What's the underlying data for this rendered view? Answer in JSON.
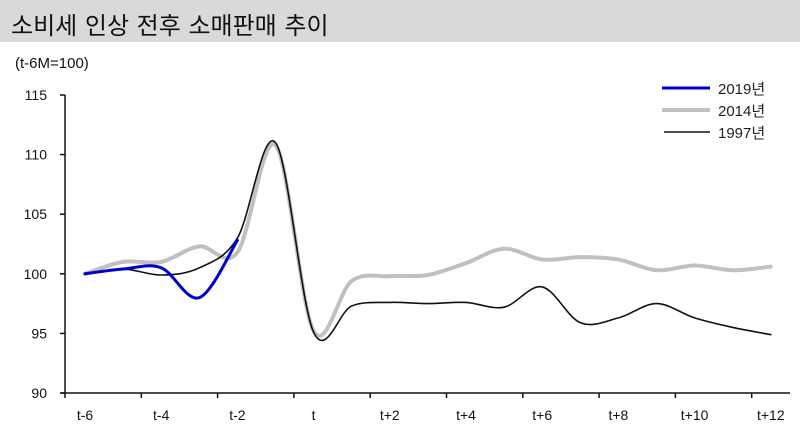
{
  "title": "소비세 인상 전후 소매판매 추이",
  "unit_label": "(t-6M=100)",
  "legend": [
    {
      "label": "2019년",
      "color": "#0000cc",
      "width": 3
    },
    {
      "label": "2014년",
      "color": "#c0c0c0",
      "width": 4
    },
    {
      "label": "1997년",
      "color": "#111111",
      "width": 1.6
    }
  ],
  "chart_data": {
    "type": "line",
    "title": "소비세 인상 전후 소매판매 추이",
    "ylabel": "(t-6M=100)",
    "xlabel": "",
    "ylim": [
      90,
      115
    ],
    "yticks": [
      90,
      95,
      100,
      105,
      110,
      115
    ],
    "x": [
      "t-6",
      "t-5",
      "t-4",
      "t-3",
      "t-2",
      "t-1",
      "t",
      "t+1",
      "t+2",
      "t+3",
      "t+4",
      "t+5",
      "t+6",
      "t+7",
      "t+8",
      "t+9",
      "t+10",
      "t+11",
      "t+12"
    ],
    "xtick_labels": [
      "t-6",
      "t-4",
      "t-2",
      "t",
      "t+2",
      "t+4",
      "t+6",
      "t+8",
      "t+10",
      "t+12"
    ],
    "grid": false,
    "legend_position": "upper right",
    "series": [
      {
        "name": "2019년",
        "values": [
          100.0,
          100.4,
          100.5,
          98.0,
          102.8,
          null,
          null,
          null,
          null,
          null,
          null,
          null,
          null,
          null,
          null,
          null,
          null,
          null,
          null
        ]
      },
      {
        "name": "2014년",
        "values": [
          100.0,
          101.0,
          101.0,
          102.3,
          101.8,
          110.8,
          95.2,
          99.4,
          99.8,
          99.9,
          100.9,
          102.1,
          101.2,
          101.4,
          101.2,
          100.3,
          100.7,
          100.3,
          100.6
        ]
      },
      {
        "name": "1997년",
        "values": [
          100.0,
          100.4,
          99.9,
          100.5,
          103.0,
          111.0,
          95.1,
          97.3,
          97.6,
          97.5,
          97.6,
          97.2,
          98.9,
          95.9,
          96.3,
          97.5,
          96.3,
          95.5,
          94.9
        ]
      }
    ]
  }
}
